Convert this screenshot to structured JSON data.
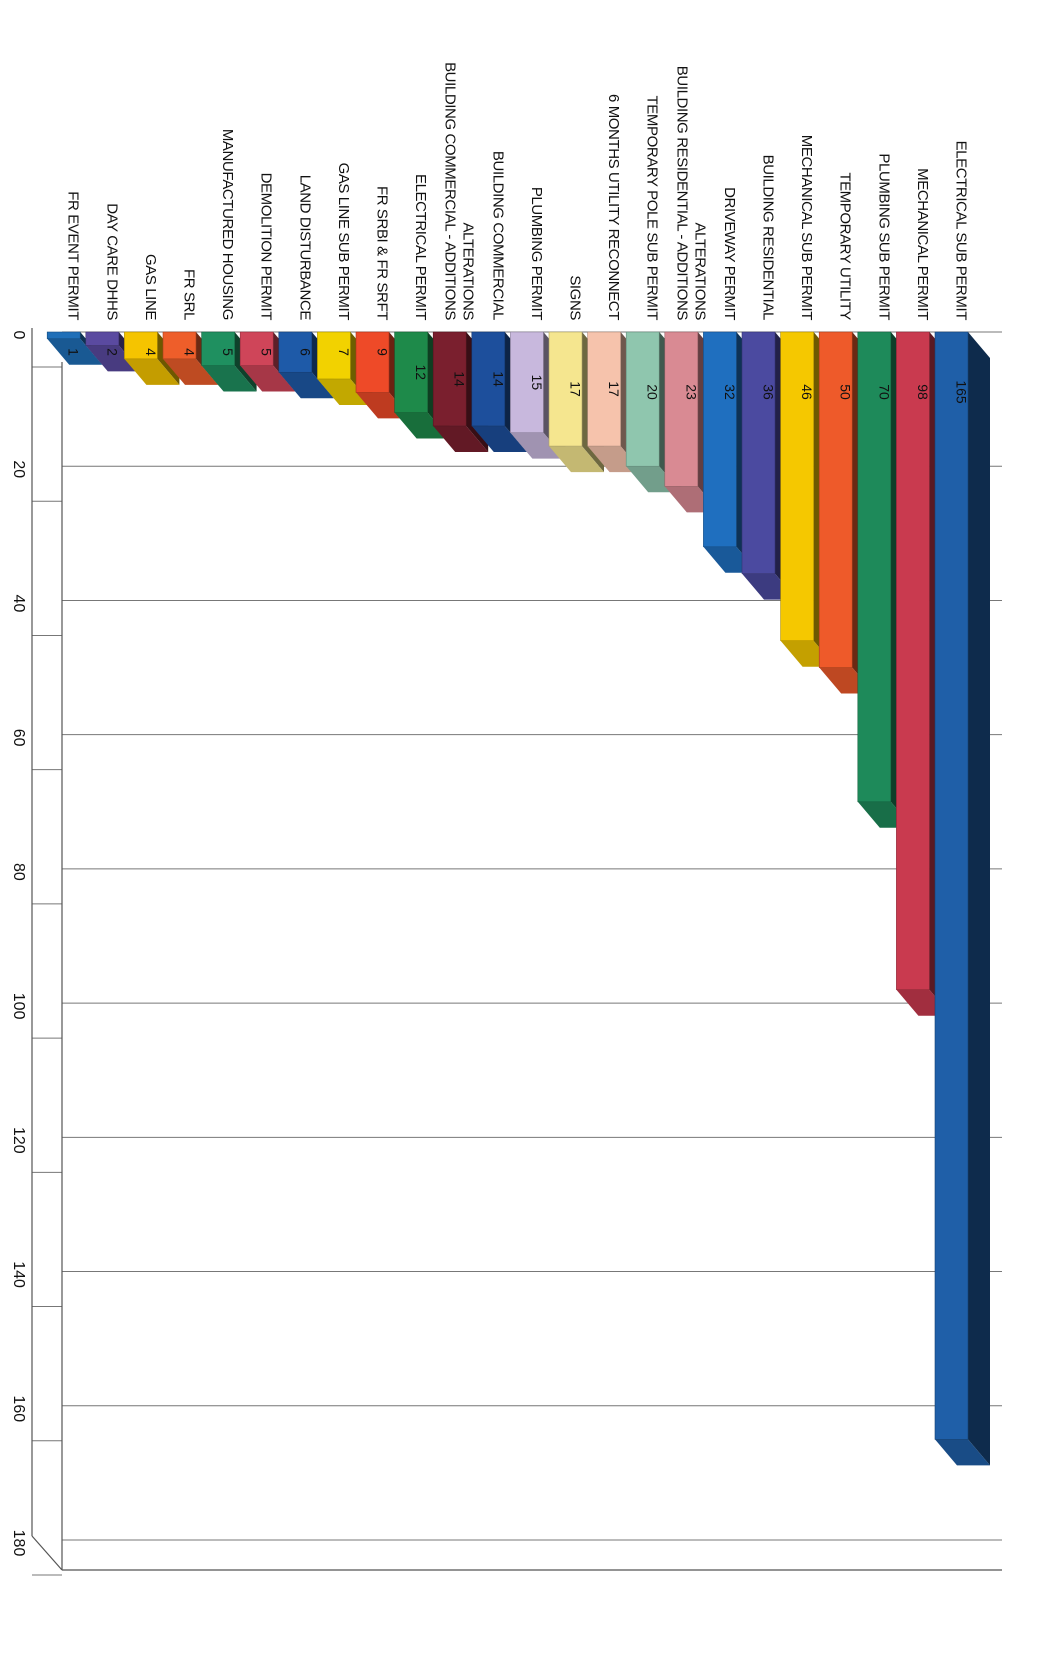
{
  "chart_data": {
    "type": "bar",
    "orientation": "horizontal-3d",
    "title": "",
    "xlabel": "",
    "ylabel": "",
    "xlim": [
      0,
      180
    ],
    "ticks": [
      "0",
      "20",
      "40",
      "60",
      "80",
      "100",
      "120",
      "140",
      "160",
      "180"
    ],
    "grid": true,
    "legend": "none",
    "categories": [
      [
        "ELECTRICAL SUB PERMIT"
      ],
      [
        "MECHANICAL PERMIT"
      ],
      [
        "PLUMBING SUB PERMIT"
      ],
      [
        "TEMPORARY UTILITY"
      ],
      [
        "MECHANICAL SUB PERMIT"
      ],
      [
        "BUILDING RESIDENTIAL"
      ],
      [
        "DRIVEWAY PERMIT"
      ],
      [
        "BUILDING RESIDENTIAL - ADDITIONS",
        "ALTERATIONS"
      ],
      [
        "TEMPORARY POLE SUB PERMIT"
      ],
      [
        "6 MONTHS UTILITY RECONNECT"
      ],
      [
        "SIGNS"
      ],
      [
        "PLUMBING PERMIT"
      ],
      [
        "BUILDING COMMERCIAL"
      ],
      [
        "BUILDING COMMERCIAL - ADDITIONS",
        "ALTERATIONS"
      ],
      [
        "ELECTRICAL PERMIT"
      ],
      [
        "FR SRBI & FR SRFT"
      ],
      [
        "GAS LINE SUB PERMIT"
      ],
      [
        "LAND DISTURBANCE"
      ],
      [
        "DEMOLITION PERMIT"
      ],
      [
        "MANUFACTURED HOUSING"
      ],
      [
        "FR SRL"
      ],
      [
        "GAS LINE"
      ],
      [
        "DAY CARE DHHS"
      ],
      [
        "FR EVENT PERMIT"
      ]
    ],
    "values": [
      165,
      98,
      70,
      50,
      46,
      36,
      32,
      23,
      20,
      17,
      17,
      15,
      14,
      14,
      12,
      9,
      7,
      6,
      5,
      5,
      4,
      4,
      2,
      1
    ],
    "data_labels": [
      "165",
      "98",
      "70",
      "50",
      "46",
      "36",
      "32",
      "23",
      "20",
      "17",
      "17",
      "15",
      "14",
      "14",
      "12",
      "9",
      "7",
      "6",
      "5",
      "5",
      "4",
      "4",
      "2",
      "1"
    ],
    "colors": [
      "#1f5fa8",
      "#c93a4f",
      "#1e8a5a",
      "#ee5a2a",
      "#f5c800",
      "#4b4aa0",
      "#1f6fbf",
      "#d98a93",
      "#8fc6ae",
      "#f6c3ac",
      "#f5e68f",
      "#c8b8dd",
      "#1d4f9c",
      "#7a1f2e",
      "#1e8a4a",
      "#ee4a28",
      "#f2d200",
      "#1e5aa8",
      "#cf4559",
      "#1f9060",
      "#ee5e2a",
      "#f5c400",
      "#5a4aa0",
      "#1f6fb8"
    ]
  }
}
